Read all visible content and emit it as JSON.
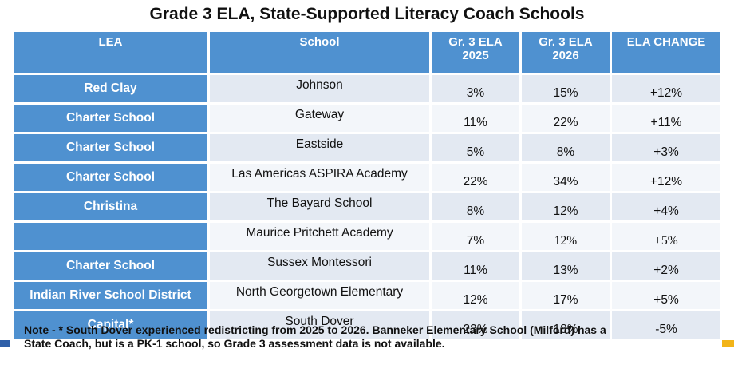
{
  "title": "Grade 3 ELA, State-Supported Literacy Coach Schools",
  "headers": {
    "lea": "LEA",
    "school": "School",
    "ela2025_line1": "Gr. 3 ELA",
    "ela2025_line2": "2025",
    "ela2026_line1": "Gr. 3 ELA",
    "ela2026_line2": "2026",
    "change": "ELA CHANGE"
  },
  "rows": [
    {
      "lea": "Red Clay",
      "school": "Johnson",
      "y2025": "3%",
      "y2026": "15%",
      "change": "+12%"
    },
    {
      "lea": "Charter School",
      "school": "Gateway",
      "y2025": "11%",
      "y2026": "22%",
      "change": "+11%"
    },
    {
      "lea": "Charter School",
      "school": "Eastside",
      "y2025": "5%",
      "y2026": "8%",
      "change": "+3%"
    },
    {
      "lea": "Charter School",
      "school": "Las Americas ASPIRA Academy",
      "y2025": "22%",
      "y2026": "34%",
      "change": "+12%"
    },
    {
      "lea": "Christina",
      "school": "The Bayard School",
      "y2025": "8%",
      "y2026": "12%",
      "change": "+4%"
    },
    {
      "lea": "",
      "school": "Maurice Pritchett Academy",
      "y2025": "7%",
      "y2026": "12%",
      "change": "+5%"
    },
    {
      "lea": "Charter School",
      "school": "Sussex Montessori",
      "y2025": "11%",
      "y2026": "13%",
      "change": "+2%"
    },
    {
      "lea": "Indian River School District",
      "school": "North Georgetown Elementary",
      "y2025": "12%",
      "y2026": "17%",
      "change": "+5%"
    },
    {
      "lea": "Capital*",
      "school": "South Dover",
      "y2025": "23%",
      "y2026": "18%",
      "change": "-5%"
    }
  ],
  "note_line1": "Note - * South Dover experienced redistricting from 2025 to 2026. Banneker Elementary School (Milford) has a",
  "note_line2": "State Coach, but is a PK-1 school, so Grade 3 assessment data is not available.",
  "colors": {
    "header_blue": "#4f91d0",
    "row_light": "#e3e9f2",
    "row_lighter": "#f3f6fa",
    "accent_navy": "#2f5fa8",
    "accent_gold": "#f2b418"
  }
}
